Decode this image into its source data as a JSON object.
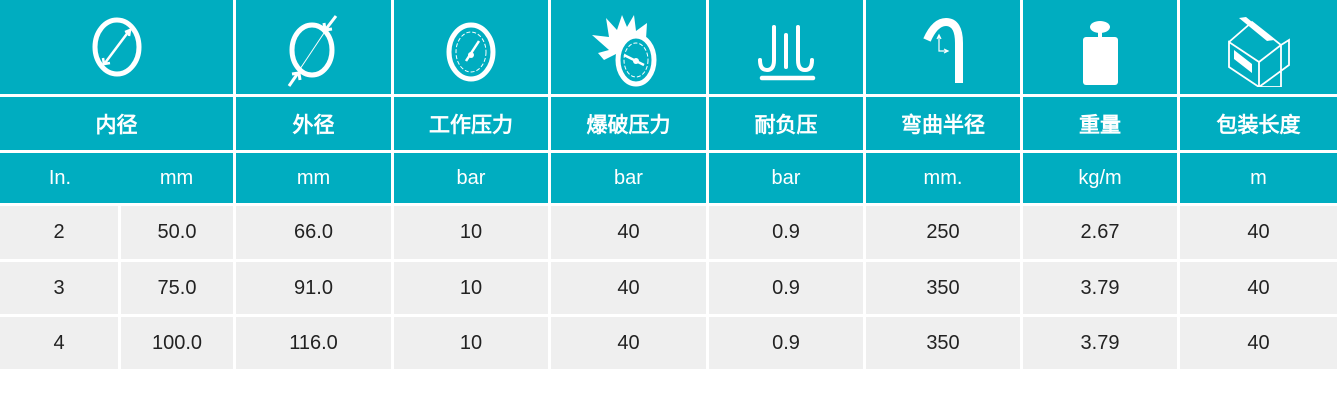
{
  "colors": {
    "header_bg": "#00adc0",
    "row_bg": "#efefef",
    "text": "#222222"
  },
  "icons": [
    "inner-diameter-icon",
    "outer-diameter-icon",
    "working-pressure-gauge-icon",
    "burst-pressure-gauge-icon",
    "vacuum-resistance-icon",
    "bend-radius-icon",
    "weight-icon",
    "package-box-icon"
  ],
  "headers": [
    "内径",
    "外径",
    "工作压力",
    "爆破压力",
    "耐负压",
    "弯曲半径",
    "重量",
    "包装长度"
  ],
  "units": [
    "In.",
    "mm",
    "mm",
    "bar",
    "bar",
    "bar",
    "mm.",
    "kg/m",
    "m"
  ],
  "rows": [
    [
      "2",
      "50.0",
      "66.0",
      "10",
      "40",
      "0.9",
      "250",
      "2.67",
      "40"
    ],
    [
      "3",
      "75.0",
      "91.0",
      "10",
      "40",
      "0.9",
      "350",
      "3.79",
      "40"
    ],
    [
      "4",
      "100.0",
      "116.0",
      "10",
      "40",
      "0.9",
      "350",
      "3.79",
      "40"
    ]
  ]
}
